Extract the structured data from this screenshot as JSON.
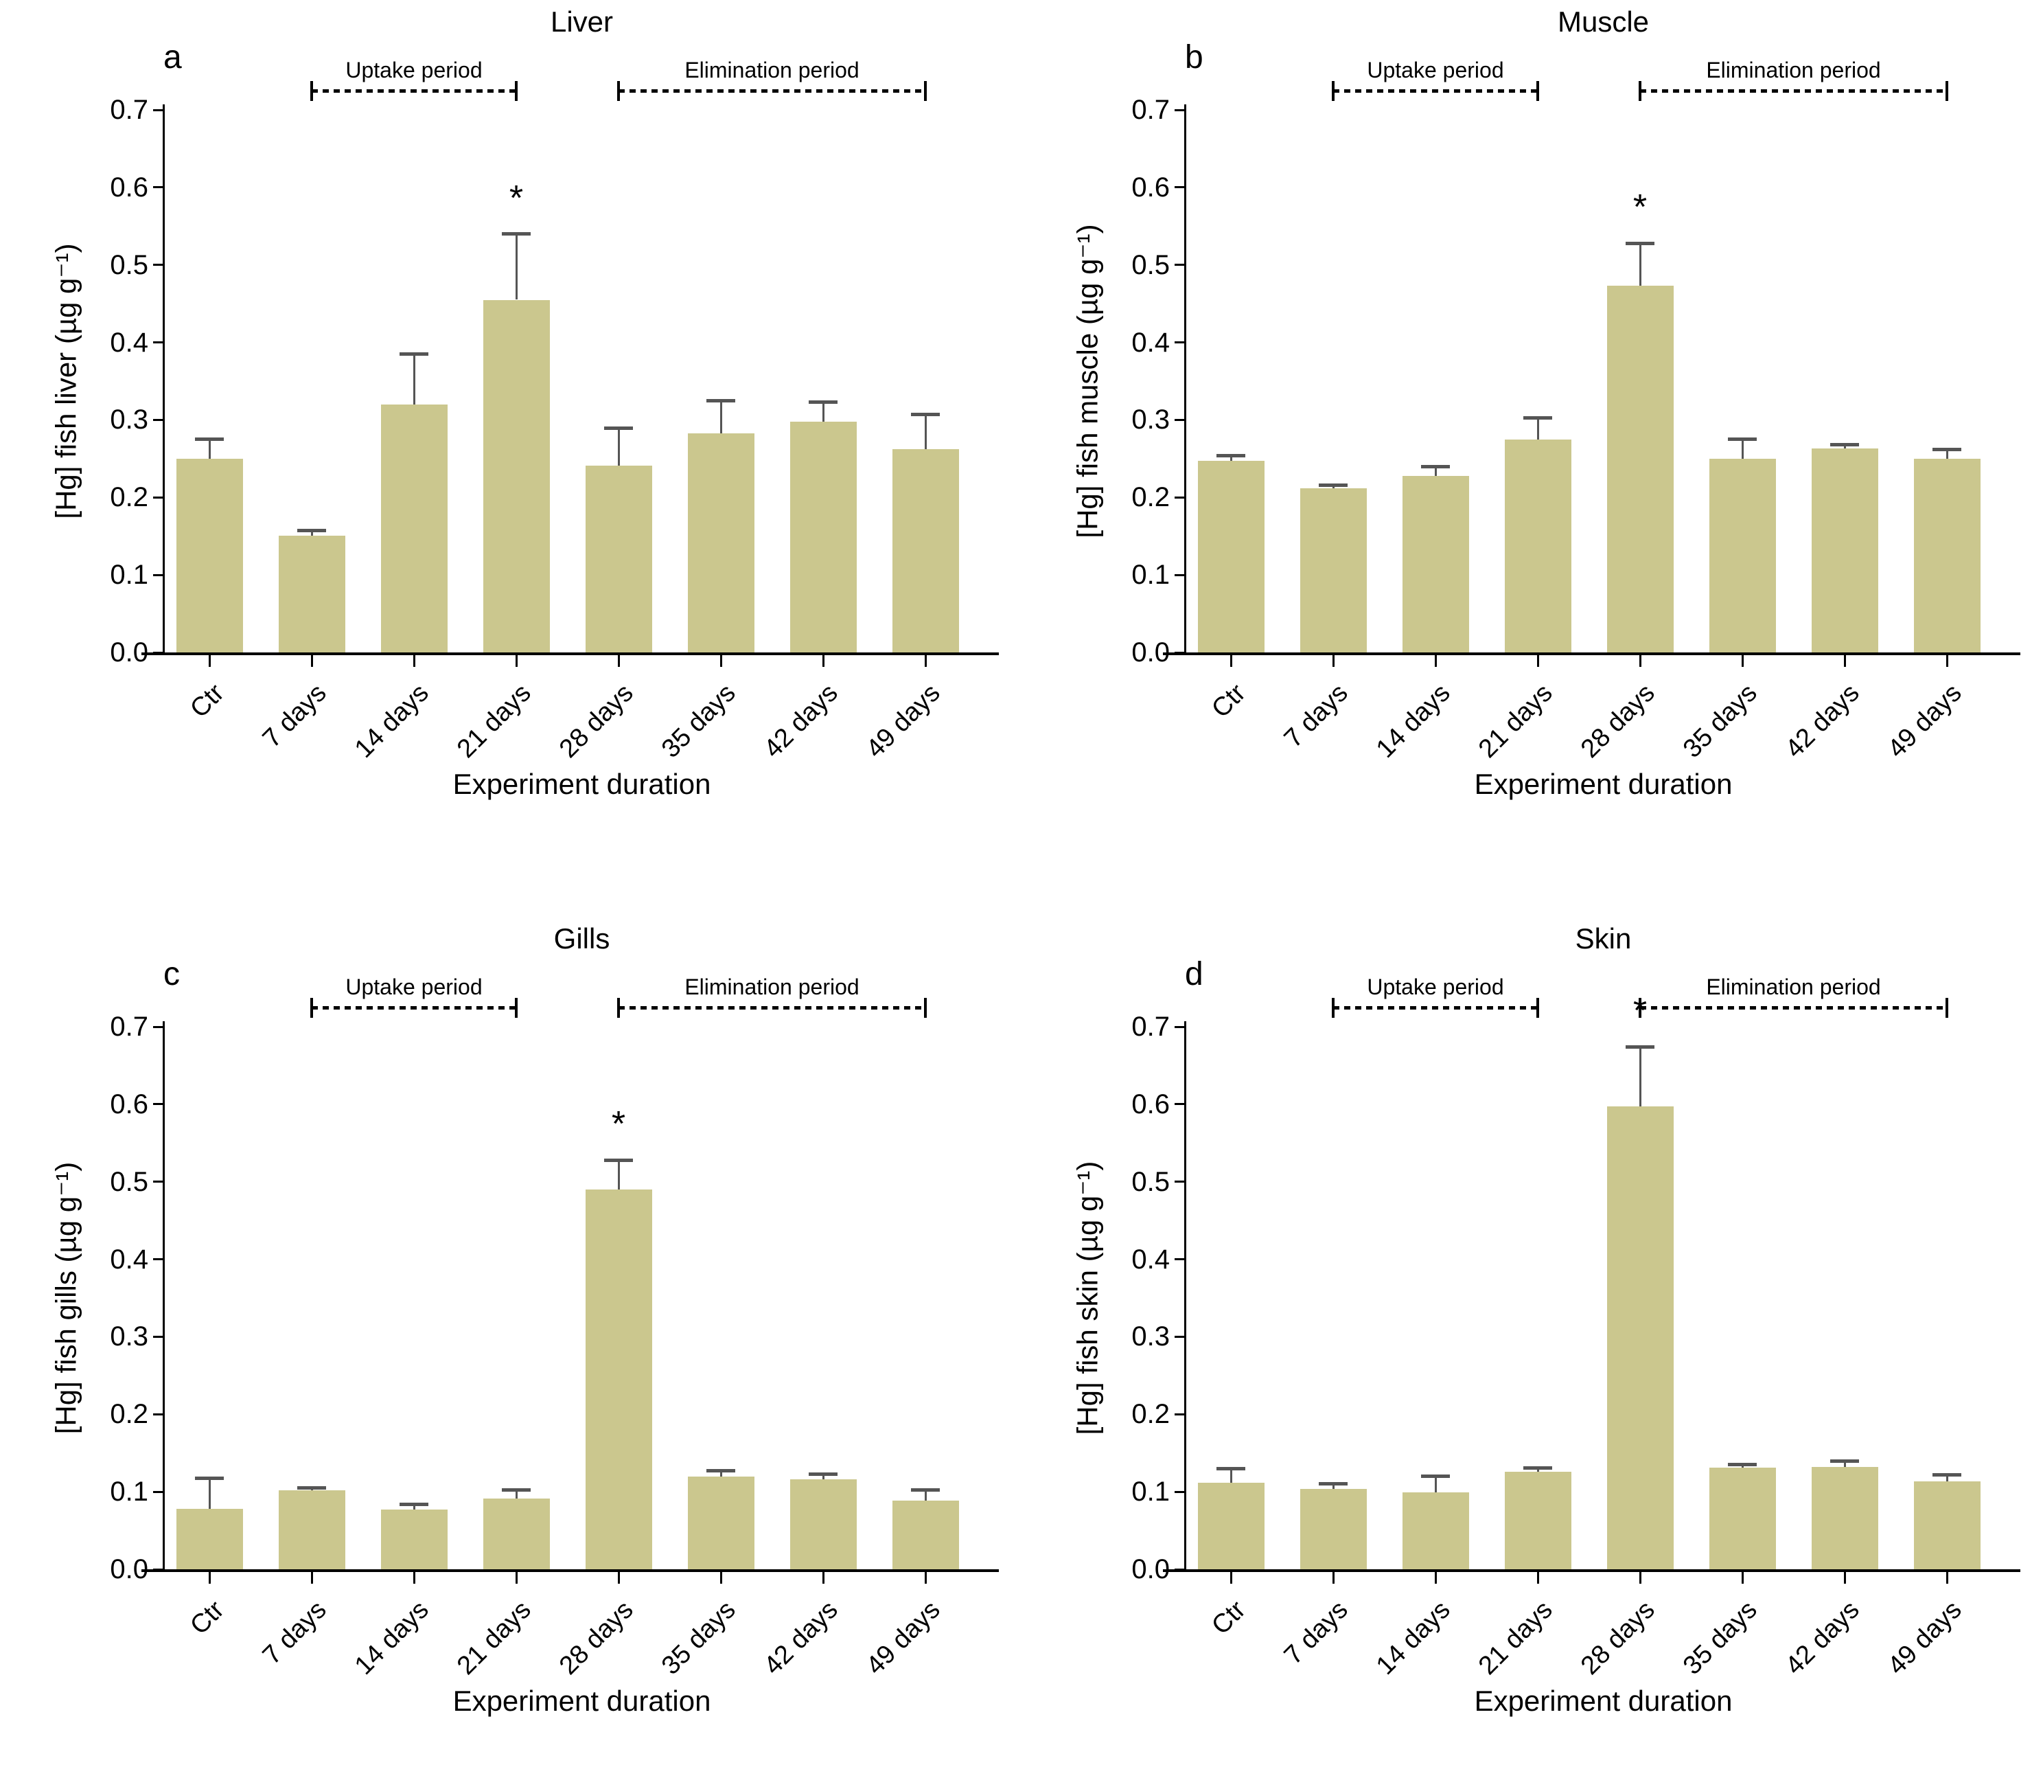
{
  "figure": {
    "x_axis_title": "Experiment duration",
    "sig_label": "*",
    "colors": {
      "bar_fill": "#CBC78E",
      "error_bar": "#555555",
      "axis": "#000000"
    }
  },
  "chart_data": [
    {
      "type": "bar",
      "panel_letter": "a",
      "title": "Liver",
      "xlabel": "Experiment duration",
      "ylabel": "[Hg] fish liver (µg g⁻¹)",
      "categories": [
        "Ctr",
        "7 days",
        "14 days",
        "21 days",
        "28 days",
        "35 days",
        "42 days",
        "49 days"
      ],
      "values": [
        0.25,
        0.151,
        0.32,
        0.455,
        0.241,
        0.283,
        0.298,
        0.262
      ],
      "errors": [
        0.025,
        0.006,
        0.065,
        0.085,
        0.048,
        0.042,
        0.025,
        0.045
      ],
      "significant": [
        false,
        false,
        false,
        true,
        false,
        false,
        false,
        false
      ],
      "ylim": [
        0,
        0.7
      ],
      "ytick_step": 0.1,
      "grid": false,
      "bar_color": "#CBC78E",
      "error_color": "#555555",
      "sig_label": "*",
      "periods": [
        {
          "label": "Uptake period",
          "from_bar": 1,
          "to_bar": 3
        },
        {
          "label": "Elimination period",
          "from_bar": 4,
          "to_bar": 7
        }
      ]
    },
    {
      "type": "bar",
      "panel_letter": "b",
      "title": "Muscle",
      "xlabel": "Experiment duration",
      "ylabel": "[Hg] fish muscle (µg g⁻¹)",
      "categories": [
        "Ctr",
        "7 days",
        "14 days",
        "21 days",
        "28 days",
        "35 days",
        "42 days",
        "49 days"
      ],
      "values": [
        0.247,
        0.212,
        0.228,
        0.275,
        0.473,
        0.25,
        0.263,
        0.25
      ],
      "errors": [
        0.007,
        0.004,
        0.012,
        0.028,
        0.055,
        0.025,
        0.005,
        0.012
      ],
      "significant": [
        false,
        false,
        false,
        false,
        true,
        false,
        false,
        false
      ],
      "ylim": [
        0,
        0.7
      ],
      "ytick_step": 0.1,
      "grid": false,
      "bar_color": "#CBC78E",
      "error_color": "#555555",
      "sig_label": "*",
      "periods": [
        {
          "label": "Uptake period",
          "from_bar": 1,
          "to_bar": 3
        },
        {
          "label": "Elimination period",
          "from_bar": 4,
          "to_bar": 7
        }
      ]
    },
    {
      "type": "bar",
      "panel_letter": "c",
      "title": "Gills",
      "xlabel": "Experiment duration",
      "ylabel": "[Hg] fish gills (µg g⁻¹)",
      "categories": [
        "Ctr",
        "7 days",
        "14 days",
        "21 days",
        "28 days",
        "35 days",
        "42 days",
        "49 days"
      ],
      "values": [
        0.078,
        0.102,
        0.077,
        0.091,
        0.49,
        0.12,
        0.116,
        0.089
      ],
      "errors": [
        0.039,
        0.003,
        0.007,
        0.011,
        0.038,
        0.007,
        0.007,
        0.013
      ],
      "significant": [
        false,
        false,
        false,
        false,
        true,
        false,
        false,
        false
      ],
      "ylim": [
        0,
        0.7
      ],
      "ytick_step": 0.1,
      "grid": false,
      "bar_color": "#CBC78E",
      "error_color": "#555555",
      "sig_label": "*",
      "periods": [
        {
          "label": "Uptake period",
          "from_bar": 1,
          "to_bar": 3
        },
        {
          "label": "Elimination period",
          "from_bar": 4,
          "to_bar": 7
        }
      ]
    },
    {
      "type": "bar",
      "panel_letter": "d",
      "title": "Skin",
      "xlabel": "Experiment duration",
      "ylabel": "[Hg] fish skin (µg g⁻¹)",
      "categories": [
        "Ctr",
        "7 days",
        "14 days",
        "21 days",
        "28 days",
        "35 days",
        "42 days",
        "49 days"
      ],
      "values": [
        0.112,
        0.104,
        0.099,
        0.126,
        0.597,
        0.131,
        0.132,
        0.113
      ],
      "errors": [
        0.018,
        0.006,
        0.021,
        0.005,
        0.077,
        0.004,
        0.008,
        0.009
      ],
      "significant": [
        false,
        false,
        false,
        false,
        true,
        false,
        false,
        false
      ],
      "ylim": [
        0,
        0.7
      ],
      "ytick_step": 0.1,
      "grid": false,
      "bar_color": "#CBC78E",
      "error_color": "#555555",
      "sig_label": "*",
      "periods": [
        {
          "label": "Uptake period",
          "from_bar": 1,
          "to_bar": 3
        },
        {
          "label": "Elimination period",
          "from_bar": 4,
          "to_bar": 7
        }
      ]
    }
  ]
}
